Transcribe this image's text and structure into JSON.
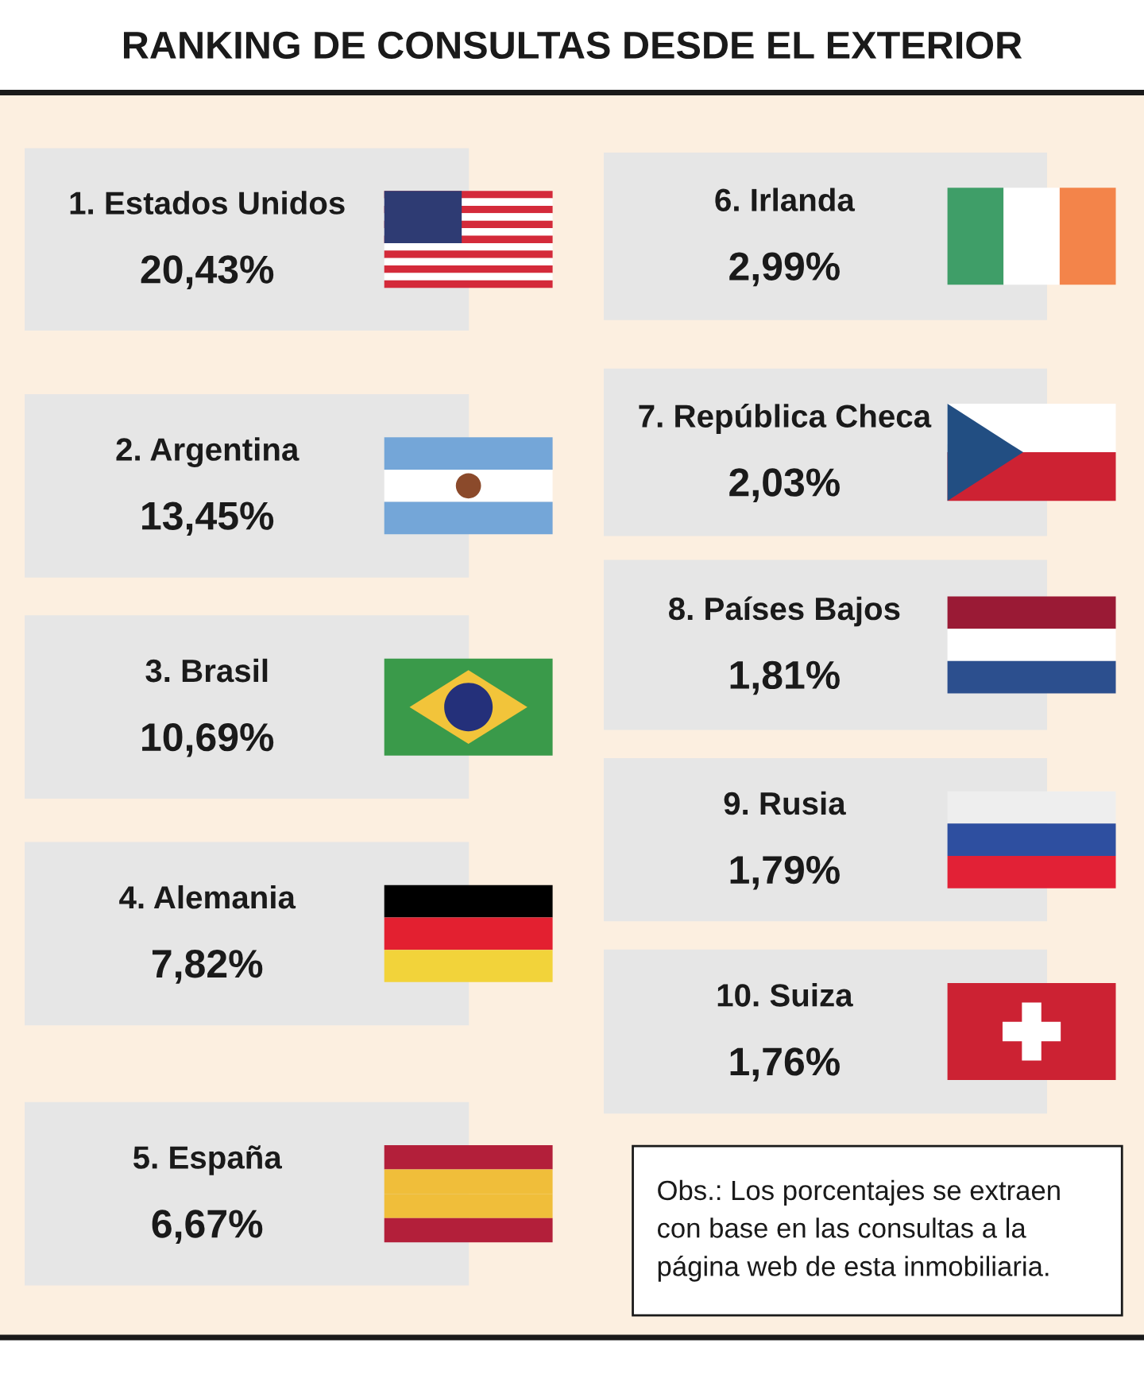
{
  "chart_data": {
    "type": "other",
    "title": "RANKING DE CONSULTAS DESDE EL EXTERIOR",
    "categories": [
      "1. Estados Unidos",
      "2. Argentina",
      "3. Brasil",
      "4. Alemania",
      "5. España",
      "6. Irlanda",
      "7. República Checa",
      "8. Países Bajos",
      "9. Rusia",
      "10. Suiza"
    ],
    "values": [
      20.43,
      13.45,
      10.69,
      7.82,
      6.67,
      2.99,
      2.03,
      1.81,
      1.79,
      1.76
    ],
    "value_labels": [
      "20,43%",
      "13,45%",
      "10,69%",
      "7,82%",
      "6,67%",
      "2,99%",
      "2,03%",
      "1,81%",
      "1,79%",
      "1,76%"
    ],
    "annotations": [
      "Obs.: Los porcentajes se extraen\ncon base en las consultas a la\npágina web de esta inmobiliaria."
    ]
  }
}
